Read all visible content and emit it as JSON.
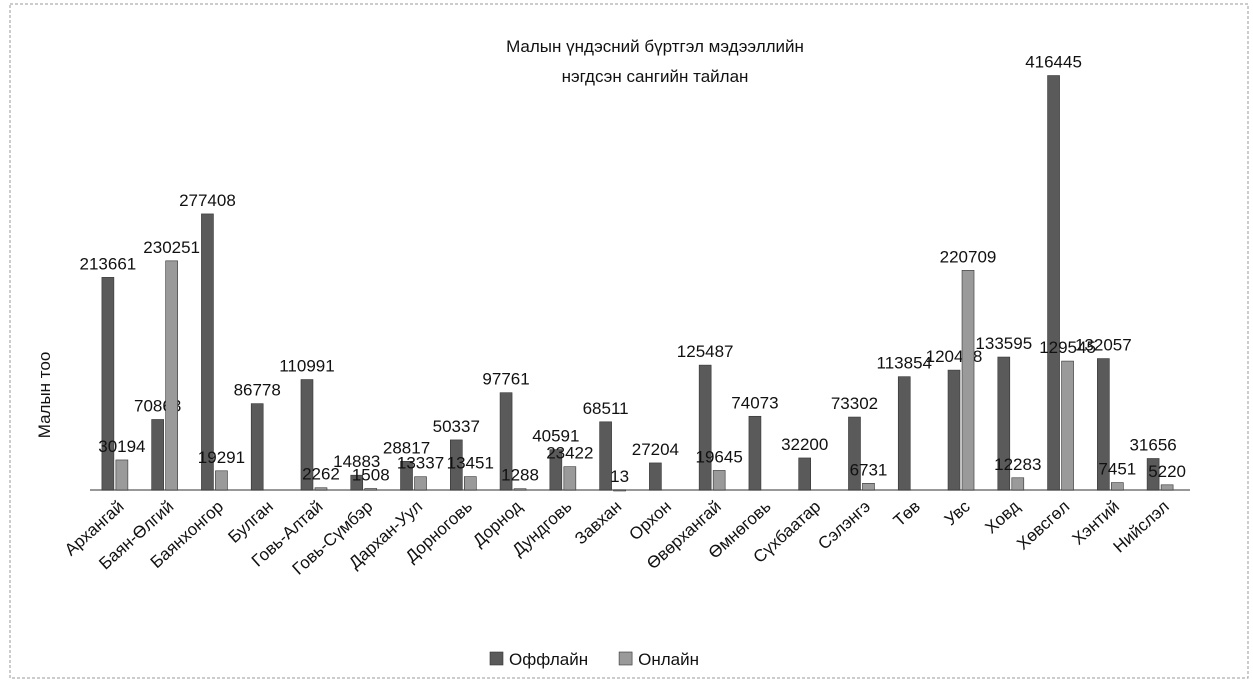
{
  "chart_data": {
    "type": "bar",
    "title": [
      "Малын үндэсний бүртгэл мэдээллийн",
      "нэгдсэн сангийн тайлан"
    ],
    "y_label": "Малын тоо",
    "categories": [
      "Архангай",
      "Баян-Өлгий",
      "Баянхонгор",
      "Булган",
      "Говь-Алтай",
      "Говь-Сүмбэр",
      "Дархан-Уул",
      "Дорноговь",
      "Дорнод",
      "Дундговь",
      "Завхан",
      "Орхон",
      "Өвөрхангай",
      "Өмнөговь",
      "Сүхбаатар",
      "Сэлэнгэ",
      "Төв",
      "Увс",
      "Ховд",
      "Хөвсгөл",
      "Хэнтий",
      "Нийслэл"
    ],
    "series": [
      {
        "name": "Оффлайн",
        "color": "#5a5a5a",
        "values": [
          213661,
          70863,
          277408,
          86778,
          110991,
          14883,
          28817,
          50337,
          97761,
          40591,
          68511,
          27204,
          125487,
          74073,
          32200,
          73302,
          113854,
          120468,
          133595,
          416445,
          132057,
          31656
        ]
      },
      {
        "name": "Онлайн",
        "color": "#9a9a9a",
        "values": [
          30194,
          230251,
          19291,
          null,
          2262,
          1508,
          13337,
          13451,
          1288,
          23422,
          13,
          null,
          19645,
          null,
          null,
          6731,
          null,
          220709,
          12283,
          129545,
          7451,
          5220
        ]
      }
    ],
    "ylim": [
      0,
      420000
    ],
    "legend": "bottom"
  }
}
